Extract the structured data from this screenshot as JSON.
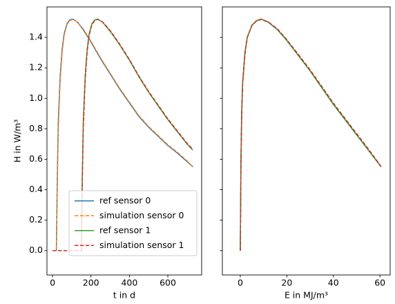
{
  "chart_data": [
    {
      "type": "line",
      "xlabel": "t in d",
      "ylabel": "H in W/m³",
      "xlim": [
        -29,
        776
      ],
      "ylim": [
        -0.16,
        1.6
      ],
      "xticks": [
        0,
        200,
        400,
        600
      ],
      "yticks": [
        {
          "value": 0,
          "label": "0.0"
        },
        0.2,
        0.4,
        0.6,
        0.8,
        {
          "value": 1,
          "label": "1.0"
        },
        1.2,
        1.4
      ],
      "legend": "lower right",
      "series": [
        {
          "name": "ref sensor 0",
          "color": "#1f77b4",
          "dash": false,
          "x": [
            20,
            25,
            30,
            40,
            50,
            60,
            75,
            90,
            105,
            130,
            160,
            200,
            250,
            300,
            350,
            400,
            450,
            500,
            550,
            600,
            650,
            700,
            730
          ],
          "values": [
            0,
            0.5,
            0.85,
            1.15,
            1.32,
            1.42,
            1.49,
            1.515,
            1.52,
            1.5,
            1.45,
            1.37,
            1.26,
            1.16,
            1.06,
            0.97,
            0.88,
            0.81,
            0.75,
            0.69,
            0.64,
            0.585,
            0.55
          ]
        },
        {
          "name": "simulation sensor 0",
          "color": "#ff7f0e",
          "dash": true,
          "x": [
            0,
            20,
            25,
            30,
            40,
            50,
            60,
            75,
            90,
            105,
            130,
            160,
            200,
            250,
            300,
            350,
            400,
            450,
            500,
            550,
            600,
            650,
            700,
            730
          ],
          "values": [
            0,
            0,
            0.45,
            0.8,
            1.12,
            1.3,
            1.41,
            1.485,
            1.51,
            1.518,
            1.5,
            1.455,
            1.375,
            1.265,
            1.165,
            1.065,
            0.975,
            0.885,
            0.815,
            0.755,
            0.695,
            0.645,
            0.59,
            0.55
          ]
        },
        {
          "name": "ref sensor 1",
          "color": "#2ca02c",
          "dash": false,
          "x": [
            150,
            155,
            160,
            170,
            180,
            190,
            205,
            220,
            235,
            260,
            300,
            350,
            400,
            450,
            500,
            550,
            600,
            650,
            700,
            730
          ],
          "values": [
            0,
            0.5,
            0.85,
            1.15,
            1.32,
            1.42,
            1.49,
            1.515,
            1.52,
            1.5,
            1.44,
            1.35,
            1.25,
            1.14,
            1.04,
            0.95,
            0.86,
            0.78,
            0.7,
            0.66
          ]
        },
        {
          "name": "simulation sensor 1",
          "color": "#d62728",
          "dash": true,
          "x": [
            0,
            150,
            155,
            160,
            170,
            180,
            190,
            205,
            220,
            235,
            260,
            300,
            350,
            400,
            450,
            500,
            550,
            600,
            650,
            700,
            730
          ],
          "values": [
            0,
            0,
            0.45,
            0.8,
            1.12,
            1.3,
            1.41,
            1.485,
            1.51,
            1.518,
            1.502,
            1.445,
            1.355,
            1.255,
            1.145,
            1.045,
            0.955,
            0.865,
            0.785,
            0.705,
            0.665
          ]
        }
      ]
    },
    {
      "type": "line",
      "xlabel": "E in MJ/m³",
      "xlim": [
        -7.7,
        64.4
      ],
      "ylim": [
        -0.16,
        1.6
      ],
      "xticks": [
        0,
        20,
        40,
        60
      ],
      "yticks": [
        0,
        0.2,
        0.4,
        0.6,
        0.8,
        1,
        1.2,
        1.4
      ],
      "ytick_labels": false,
      "series": [
        {
          "color": "#1f77b4",
          "dash": false,
          "x": [
            0,
            0.3,
            0.6,
            1,
            2,
            3,
            5,
            7,
            9,
            12,
            16,
            20,
            25,
            30,
            35,
            40,
            45,
            50,
            55,
            60.5
          ],
          "values": [
            0,
            0.6,
            0.9,
            1.1,
            1.3,
            1.4,
            1.48,
            1.51,
            1.52,
            1.5,
            1.45,
            1.38,
            1.28,
            1.18,
            1.07,
            0.96,
            0.86,
            0.76,
            0.66,
            0.55
          ]
        },
        {
          "color": "#ff7f0e",
          "dash": true,
          "x": [
            0,
            0.3,
            0.6,
            1,
            2,
            3,
            5,
            7,
            9,
            12,
            16,
            20,
            25,
            30,
            35,
            40,
            45,
            50,
            55,
            60.5
          ],
          "values": [
            0,
            0.58,
            0.88,
            1.09,
            1.29,
            1.4,
            1.478,
            1.508,
            1.518,
            1.5,
            1.452,
            1.382,
            1.283,
            1.183,
            1.075,
            0.965,
            0.865,
            0.765,
            0.665,
            0.55
          ]
        },
        {
          "color": "#2ca02c",
          "dash": false,
          "x": [
            0,
            0.3,
            0.6,
            1,
            2,
            3,
            5,
            7,
            9,
            12,
            16,
            20,
            25,
            30,
            35,
            40,
            45,
            50,
            55,
            60.5
          ],
          "values": [
            0,
            0.6,
            0.9,
            1.1,
            1.3,
            1.4,
            1.48,
            1.51,
            1.52,
            1.5,
            1.45,
            1.38,
            1.28,
            1.18,
            1.07,
            0.96,
            0.86,
            0.76,
            0.66,
            0.55
          ]
        },
        {
          "color": "#d62728",
          "dash": true,
          "x": [
            0,
            0.3,
            0.6,
            1,
            2,
            3,
            5,
            7,
            9,
            12,
            16,
            20,
            25,
            30,
            35,
            40,
            45,
            50,
            55,
            60.5
          ],
          "values": [
            0,
            0.58,
            0.88,
            1.09,
            1.29,
            1.4,
            1.478,
            1.508,
            1.518,
            1.502,
            1.455,
            1.385,
            1.287,
            1.187,
            1.078,
            0.968,
            0.868,
            0.768,
            0.668,
            0.552
          ]
        }
      ]
    }
  ]
}
